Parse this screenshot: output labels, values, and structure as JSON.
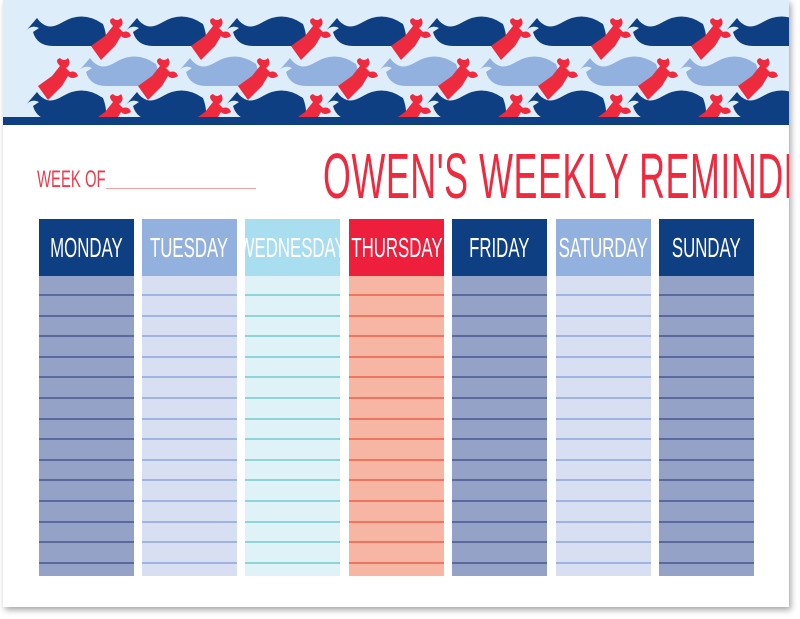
{
  "header": {
    "week_of_label": "WEEK OF",
    "title": "OWEN'S WEEKLY REMINDERS"
  },
  "days": [
    {
      "label": "MONDAY",
      "header_color": "#0e3f82",
      "body_color": "#94a2c8",
      "line_color": "#5a6a9c"
    },
    {
      "label": "TUESDAY",
      "header_color": "#92b1de",
      "body_color": "#d8dff2",
      "line_color": "#9fb5e0"
    },
    {
      "label": "WEDNESDAY",
      "header_color": "#a9ddf0",
      "body_color": "#def2f8",
      "line_color": "#8fd4d6"
    },
    {
      "label": "THURSDAY",
      "header_color": "#ee1f3d",
      "body_color": "#f7b6a3",
      "line_color": "#f07560"
    },
    {
      "label": "FRIDAY",
      "header_color": "#0e3f82",
      "body_color": "#94a2c8",
      "line_color": "#5a6a9c"
    },
    {
      "label": "SATURDAY",
      "header_color": "#92b1de",
      "body_color": "#d8dff2",
      "line_color": "#9fb5e0"
    },
    {
      "label": "SUNDAY",
      "header_color": "#0e3f82",
      "body_color": "#94a2c8",
      "line_color": "#5a6a9c"
    }
  ],
  "colors": {
    "accent_red": "#ee2a3e",
    "navy": "#0e3f82",
    "light_blue": "#ddeefa",
    "whale_light": "#92b1de",
    "lobster_red": "#ee2a3e"
  }
}
